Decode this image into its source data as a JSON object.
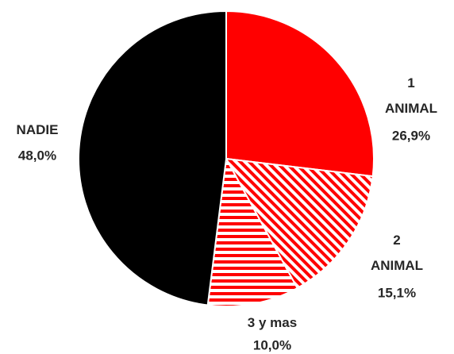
{
  "chart_data": {
    "type": "pie",
    "categories": [
      "1\nANIMAL",
      "2\nANIMAL",
      "3 y mas",
      "NADIE"
    ],
    "values": [
      26.9,
      15.1,
      10.0,
      48.0
    ],
    "value_labels": [
      "26,9%",
      "15,1%",
      "10,0%",
      "48,0%"
    ],
    "colors": [
      "#ff0000",
      "#ff0000",
      "#ff0000",
      "#000000"
    ],
    "fills": [
      "solid",
      "diagonal",
      "horizontal",
      "solid"
    ]
  }
}
